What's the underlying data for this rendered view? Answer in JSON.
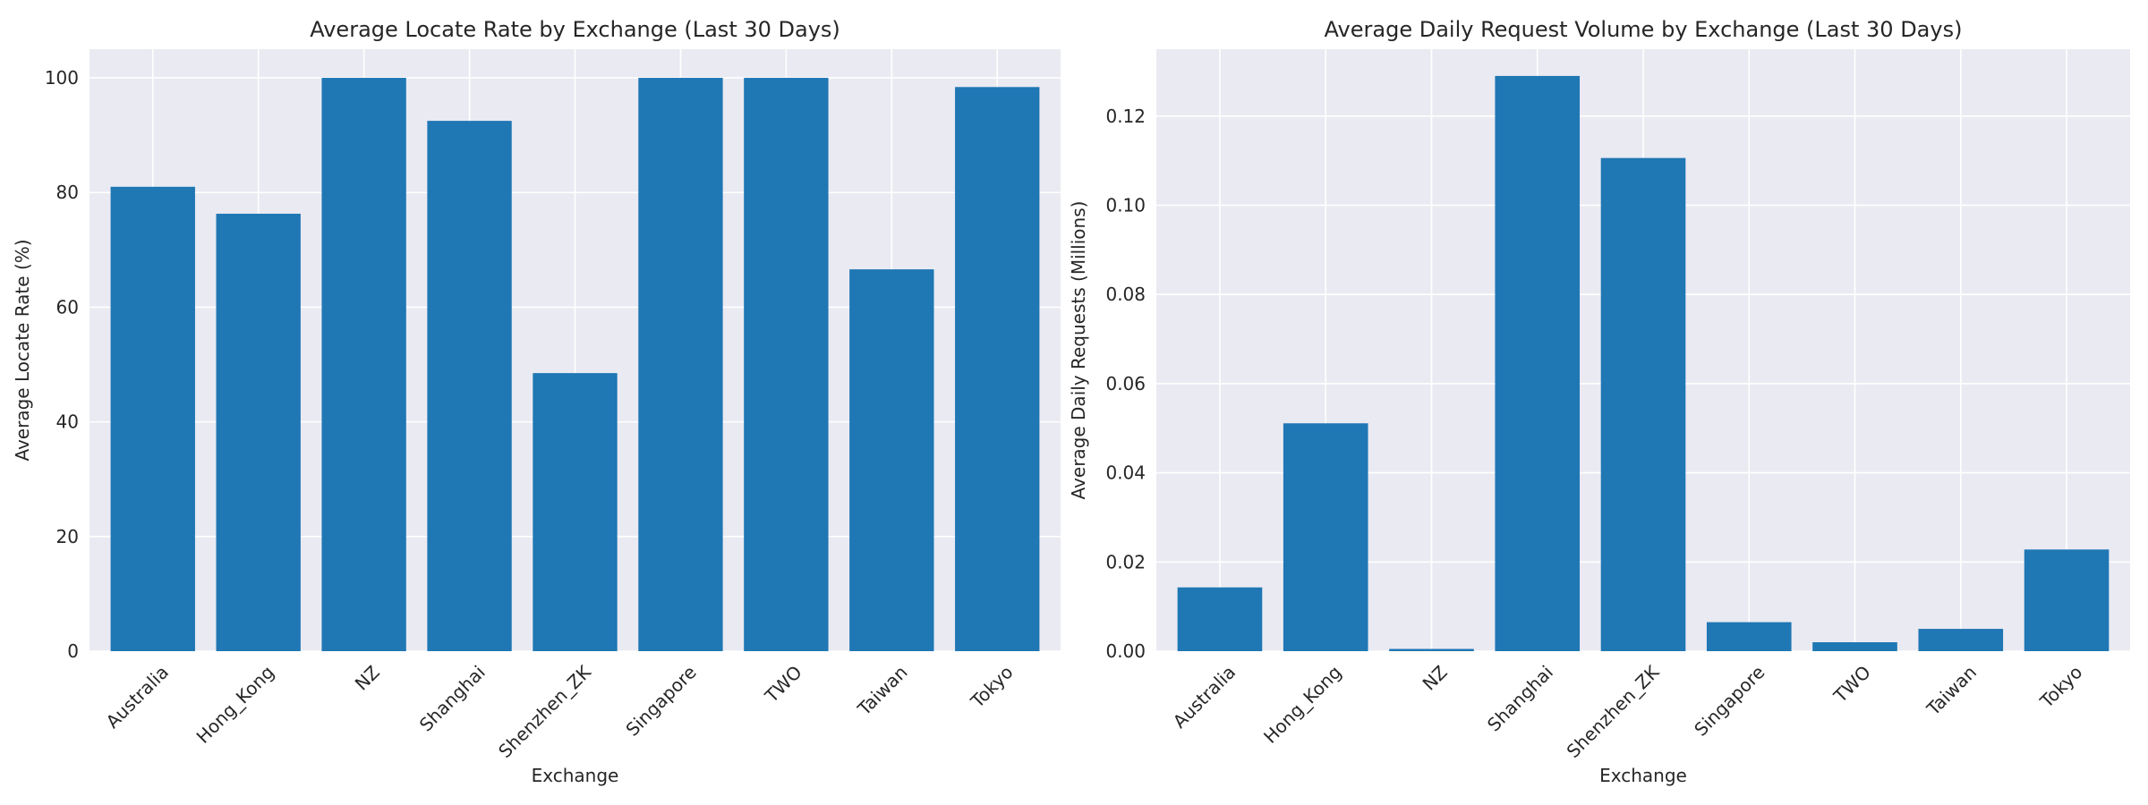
{
  "chart_data": [
    {
      "type": "bar",
      "title": "Average Locate Rate by Exchange (Last 30 Days)",
      "xlabel": "Exchange",
      "ylabel": "Average Locate Rate (%)",
      "categories": [
        "Australia",
        "Hong_Kong",
        "NZ",
        "Shanghai",
        "Shenzhen_ZK",
        "Singapore",
        "TWO",
        "Taiwan",
        "Tokyo"
      ],
      "values": [
        81.0,
        76.3,
        100.0,
        92.5,
        48.5,
        100.0,
        100.0,
        66.6,
        98.4
      ],
      "ylim": [
        0,
        105
      ],
      "yticks": [
        0,
        20,
        40,
        60,
        80,
        100
      ],
      "ytick_labels": [
        "0",
        "20",
        "40",
        "60",
        "80",
        "100"
      ],
      "grid": true,
      "bar_color": "#1f77b4",
      "background_color": "#eaeaf2"
    },
    {
      "type": "bar",
      "title": "Average Daily Request Volume by Exchange (Last 30 Days)",
      "xlabel": "Exchange",
      "ylabel": "Average Daily Requests (Millions)",
      "categories": [
        "Australia",
        "Hong_Kong",
        "NZ",
        "Shanghai",
        "Shenzhen_ZK",
        "Singapore",
        "TWO",
        "Taiwan",
        "Tokyo"
      ],
      "values": [
        0.0143,
        0.0511,
        0.0005,
        0.129,
        0.1106,
        0.0065,
        0.002,
        0.005,
        0.0228
      ],
      "ylim": [
        0,
        0.135
      ],
      "yticks": [
        0,
        0.02,
        0.04,
        0.06,
        0.08,
        0.1,
        0.12
      ],
      "ytick_labels": [
        "0.00",
        "0.02",
        "0.04",
        "0.06",
        "0.08",
        "0.10",
        "0.12"
      ],
      "grid": true,
      "bar_color": "#1f77b4",
      "background_color": "#eaeaf2"
    }
  ]
}
